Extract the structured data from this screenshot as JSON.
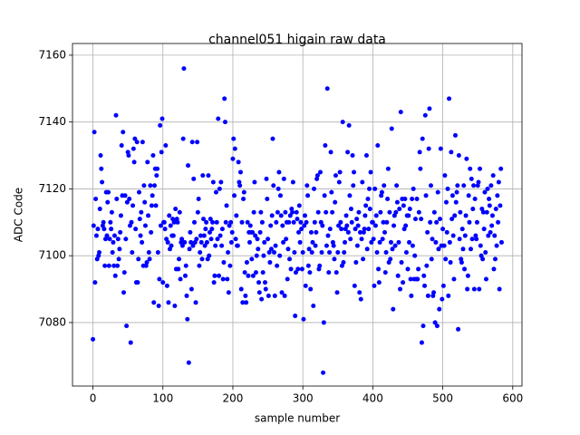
{
  "chart_data": {
    "type": "scatter",
    "title": "channel051 higain raw data",
    "x_label": "sample number",
    "y_label": "ADC Code",
    "xlim": [
      -29.2,
      613.2
    ],
    "ylim": [
      7061,
      7163.5
    ],
    "xticks": [
      0,
      100,
      200,
      300,
      400,
      500,
      600
    ],
    "yticks": [
      7080,
      7100,
      7120,
      7140,
      7160
    ],
    "grid": true,
    "series": [
      {
        "name": "ADC Code",
        "color": "#0000ff",
        "x": [
          0,
          1,
          2,
          3,
          4,
          5,
          6,
          7,
          8,
          9,
          10,
          11,
          12,
          13,
          14,
          15,
          16,
          17,
          18,
          19,
          20,
          21,
          22,
          23,
          24,
          25,
          26,
          27,
          28,
          29,
          30,
          31,
          32,
          33,
          34,
          35,
          36,
          37,
          38,
          39,
          40,
          41,
          42,
          43,
          44,
          45,
          46,
          47,
          48,
          49,
          50,
          51,
          52,
          53,
          54,
          55,
          56,
          57,
          58,
          59,
          60,
          61,
          62,
          63,
          64,
          65,
          66,
          67,
          68,
          69,
          70,
          71,
          72,
          73,
          74,
          75,
          76,
          77,
          78,
          79,
          80,
          81,
          82,
          83,
          84,
          85,
          86,
          87,
          88,
          89,
          90,
          91,
          92,
          93,
          94,
          95,
          96,
          97,
          98,
          99,
          100,
          101,
          102,
          103,
          104,
          105,
          106,
          107,
          108,
          109,
          110,
          111,
          112,
          113,
          114,
          115,
          116,
          117,
          118,
          119,
          120,
          121,
          122,
          123,
          124,
          125,
          126,
          127,
          128,
          129,
          130,
          131,
          132,
          133,
          134,
          135,
          136,
          137,
          138,
          139,
          140,
          141,
          142,
          143,
          144,
          145,
          146,
          147,
          148,
          149,
          150,
          151,
          152,
          153,
          154,
          155,
          156,
          157,
          158,
          159,
          160,
          161,
          162,
          163,
          164,
          165,
          166,
          167,
          168,
          169,
          170,
          171,
          172,
          173,
          174,
          175,
          176,
          177,
          178,
          179,
          180,
          181,
          182,
          183,
          184,
          185,
          186,
          187,
          188,
          189,
          190,
          191,
          192,
          193,
          194,
          195,
          196,
          197,
          198,
          199,
          200,
          201,
          202,
          203,
          204,
          205,
          206,
          207,
          208,
          209,
          210,
          211,
          212,
          213,
          214,
          215,
          216,
          217,
          218,
          219,
          220,
          221,
          222,
          223,
          224,
          225,
          226,
          227,
          228,
          229,
          230,
          231,
          232,
          233,
          234,
          235,
          236,
          237,
          238,
          239,
          240,
          241,
          242,
          243,
          244,
          245,
          246,
          247,
          248,
          249,
          250,
          251,
          252,
          253,
          254,
          255,
          256,
          257,
          258,
          259,
          260,
          261,
          262,
          263,
          264,
          265,
          266,
          267,
          268,
          269,
          270,
          271,
          272,
          273,
          274,
          275,
          276,
          277,
          278,
          279,
          280,
          281,
          282,
          283,
          284,
          285,
          286,
          287,
          288,
          289,
          290,
          291,
          292,
          293,
          294,
          295,
          296,
          297,
          298,
          299,
          300,
          301,
          302,
          303,
          304,
          305,
          306,
          307,
          308,
          309,
          310,
          311,
          312,
          313,
          314,
          315,
          316,
          317,
          318,
          319,
          320,
          321,
          322,
          323,
          324,
          325,
          326,
          327,
          328,
          329,
          330,
          331,
          332,
          333,
          334,
          335,
          336,
          337,
          338,
          339,
          340,
          341,
          342,
          343,
          344,
          345,
          346,
          347,
          348,
          349,
          350,
          351,
          352,
          353,
          354,
          355,
          356,
          357,
          358,
          359,
          360,
          361,
          362,
          363,
          364,
          365,
          366,
          367,
          368,
          369,
          370,
          371,
          372,
          373,
          374,
          375,
          376,
          377,
          378,
          379,
          380,
          381,
          382,
          383,
          384,
          385,
          386,
          387,
          388,
          389,
          390,
          391,
          392,
          393,
          394,
          395,
          396,
          397,
          398,
          399,
          400,
          401,
          402,
          403,
          404,
          405,
          406,
          407,
          408,
          409,
          410,
          411,
          412,
          413,
          414,
          415,
          416,
          417,
          418,
          419,
          420,
          421,
          422,
          423,
          424,
          425,
          426,
          427,
          428,
          429,
          430,
          431,
          432,
          433,
          434,
          435,
          436,
          437,
          438,
          439,
          440,
          441,
          442,
          443,
          444,
          445,
          446,
          447,
          448,
          449,
          450,
          451,
          452,
          453,
          454,
          455,
          456,
          457,
          458,
          459,
          460,
          461,
          462,
          463,
          464,
          465,
          466,
          467,
          468,
          469,
          470,
          471,
          472,
          473,
          474,
          475,
          476,
          477,
          478,
          479,
          480,
          481,
          482,
          483,
          484,
          485,
          486,
          487,
          488,
          489,
          490,
          491,
          492,
          493,
          494,
          495,
          496,
          497,
          498,
          499,
          500,
          501,
          502,
          503,
          504,
          505,
          506,
          507,
          508,
          509,
          510,
          511,
          512,
          513,
          514,
          515,
          516,
          517,
          518,
          519,
          520,
          521,
          522,
          523,
          524,
          525,
          526,
          527,
          528,
          529,
          530,
          531,
          532,
          533,
          534,
          535,
          536,
          537,
          538,
          539,
          540,
          541,
          542,
          543,
          544,
          545,
          546,
          547,
          548,
          549,
          550,
          551,
          552,
          553,
          554,
          555,
          556,
          557,
          558,
          559,
          560,
          561,
          562,
          563,
          564,
          565,
          566,
          567,
          568,
          569,
          570,
          571,
          572,
          573,
          574,
          575,
          576,
          577,
          578,
          579,
          580,
          581,
          582,
          583,
          584
        ],
        "values": [
          7075,
          7109,
          7137,
          7092,
          7117,
          7106,
          7099,
          7108,
          7100,
          7101,
          7114,
          7130,
          7126,
          7122,
          7109,
          7110,
          7108,
          7097,
          7105,
          7119,
          7106,
          7116,
          7119,
          7097,
          7105,
          7110,
          7108,
          7113,
          7101,
          7104,
          7097,
          7106,
          7094,
          7142,
          7117,
          7097,
          7105,
          7099,
          7102,
          7107,
          7112,
          7133,
          7118,
          7137,
          7089,
          7095,
          7118,
          7105,
          7079,
          7116,
          7131,
          7130,
          7117,
          7109,
          7074,
          7110,
          7101,
          7115,
          7132,
          7128,
          7135,
          7108,
          7092,
          7134,
          7092,
          7099,
          7119,
          7111,
          7106,
          7113,
          7104,
          7134,
          7097,
          7121,
          7116,
          7109,
          7097,
          7098,
          7128,
          7112,
          7101,
          7099,
          7121,
          7107,
          7115,
          7118,
          7130,
          7086,
          7121,
          7126,
          7115,
          7124,
          7126,
          7101,
          7085,
          7093,
          7139,
          7109,
          7131,
          7141,
          7092,
          7110,
          7110,
          7108,
          7133,
          7105,
          7091,
          7104,
          7086,
          7112,
          7102,
          7109,
          7103,
          7106,
          7111,
          7106,
          7110,
          7085,
          7114,
          7096,
          7111,
          7110,
          7096,
          7099,
          7113,
          7093,
          7104,
          7105,
          7103,
          7135,
          7156,
          7104,
          7094,
          7097,
          7088,
          7081,
          7127,
          7068,
          7102,
          7107,
          7104,
          7090,
          7134,
          7103,
          7123,
          7110,
          7104,
          7086,
          7105,
          7134,
          7113,
          7117,
          7097,
          7101,
          7106,
          7104,
          7099,
          7124,
          7111,
          7106,
          7103,
          7108,
          7110,
          7104,
          7099,
          7124,
          7100,
          7107,
          7111,
          7105,
          7108,
          7110,
          7122,
          7092,
          7094,
          7103,
          7119,
          7110,
          7105,
          7141,
          7094,
          7120,
          7106,
          7122,
          7103,
          7108,
          7093,
          7098,
          7147,
          7140,
          7110,
          7115,
          7093,
          7101,
          7089,
          7109,
          7097,
          7110,
          7104,
          7107,
          7129,
          7135,
          7118,
          7132,
          7105,
          7112,
          7103,
          7103,
          7128,
          7122,
          7121,
          7125,
          7090,
          7110,
          7086,
          7117,
          7119,
          7095,
          7088,
          7086,
          7098,
          7110,
          7094,
          7107,
          7104,
          7109,
          7107,
          7099,
          7107,
          7094,
          7113,
          7122,
          7106,
          7095,
          7100,
          7105,
          7102,
          7092,
          7089,
          7107,
          7113,
          7087,
          7110,
          7095,
          7100,
          7104,
          7092,
          7090,
          7123,
          7117,
          7105,
          7088,
          7101,
          7098,
          7109,
          7102,
          7112,
          7135,
          7121,
          7101,
          7088,
          7103,
          7110,
          7097,
          7113,
          7120,
          7125,
          7100,
          7118,
          7112,
          7089,
          7109,
          7104,
          7123,
          7088,
          7113,
          7105,
          7110,
          7093,
          7102,
          7110,
          7099,
          7112,
          7096,
          7114,
          7113,
          7122,
          7110,
          7101,
          7082,
          7095,
          7113,
          7111,
          7096,
          7107,
          7115,
          7104,
          7110,
          7108,
          7096,
          7101,
          7081,
          7109,
          7112,
          7091,
          7110,
          7121,
          7118,
          7097,
          7102,
          7095,
          7090,
          7107,
          7101,
          7104,
          7085,
          7120,
          7110,
          7103,
          7107,
          7123,
          7124,
          7113,
          7096,
          7097,
          7125,
          7110,
          7101,
          7109,
          7065,
          7080,
          7118,
          7133,
          7113,
          7103,
          7150,
          7106,
          7095,
          7101,
          7108,
          7131,
          7119,
          7113,
          7104,
          7103,
          7099,
          7116,
          7124,
          7095,
          7089,
          7101,
          7109,
          7122,
          7125,
          7110,
          7108,
          7097,
          7140,
          7098,
          7101,
          7104,
          7108,
          7112,
          7109,
          7131,
          7107,
          7139,
          7118,
          7105,
          7114,
          7110,
          7130,
          7121,
          7125,
          7091,
          7108,
          7098,
          7111,
          7103,
          7109,
          7113,
          7089,
          7107,
          7087,
          7105,
          7122,
          7099,
          7107,
          7108,
          7112,
          7115,
          7130,
          7102,
          7117,
          7108,
          7120,
          7114,
          7125,
          7104,
          7110,
          7110,
          7105,
          7091,
          7120,
          7109,
          7112,
          7101,
          7133,
          7096,
          7092,
          7104,
          7113,
          7118,
          7119,
          7105,
          7110,
          7121,
          7107,
          7095,
          7101,
          7110,
          7117,
          7126,
          7098,
          7113,
          7099,
          7104,
          7138,
          7102,
          7084,
          7109,
          7112,
          7103,
          7113,
          7121,
          7116,
          7094,
          7104,
          7114,
          7090,
          7143,
          7098,
          7117,
          7092,
          7115,
          7108,
          7117,
          7109,
          7101,
          7112,
          7096,
          7112,
          7104,
          7114,
          7093,
          7088,
          7117,
          7103,
          7120,
          7093,
          7100,
          7111,
          7093,
          7117,
          7093,
          7096,
          7113,
          7131,
          7126,
          7111,
          7074,
          7135,
          7079,
          7094,
          7091,
          7142,
          7118,
          7097,
          7107,
          7088,
          7132,
          7144,
          7110,
          7121,
          7099,
          7105,
          7088,
          7089,
          7113,
          7080,
          7104,
          7110,
          7079,
          7119,
          7102,
          7084,
          7111,
          7132,
          7103,
          7087,
          7108,
          7091,
          7103,
          7124,
          7099,
          7116,
          7107,
          7120,
          7088,
          7147,
          7104,
          7098,
          7131,
          7111,
          7118,
          7106,
          7093,
          7112,
          7136,
          7116,
          7119,
          7121,
          7078,
          7130,
          7105,
          7113,
          7099,
          7098,
          7108,
          7102,
          7121,
          7096,
          7106,
          7112,
          7129,
          7090,
          7094,
          7118,
          7110,
          7126,
          7102,
          7123,
          7105,
          7114,
          7121,
          7090,
          7117,
          7106,
          7105,
          7110,
          7121,
          7122,
          7090,
          7126,
          7103,
          7100,
          7114,
          7099,
          7113,
          7108,
          7119,
          7101,
          7093,
          7113,
          7120,
          7106,
          7117,
          7115,
          7107,
          7121,
          7109,
          7112,
          7124,
          7096,
          7106,
          7099,
          7114,
          7103,
          7118,
          7110,
          7122,
          7090,
          7115,
          7126,
          7104
        ]
      }
    ]
  }
}
